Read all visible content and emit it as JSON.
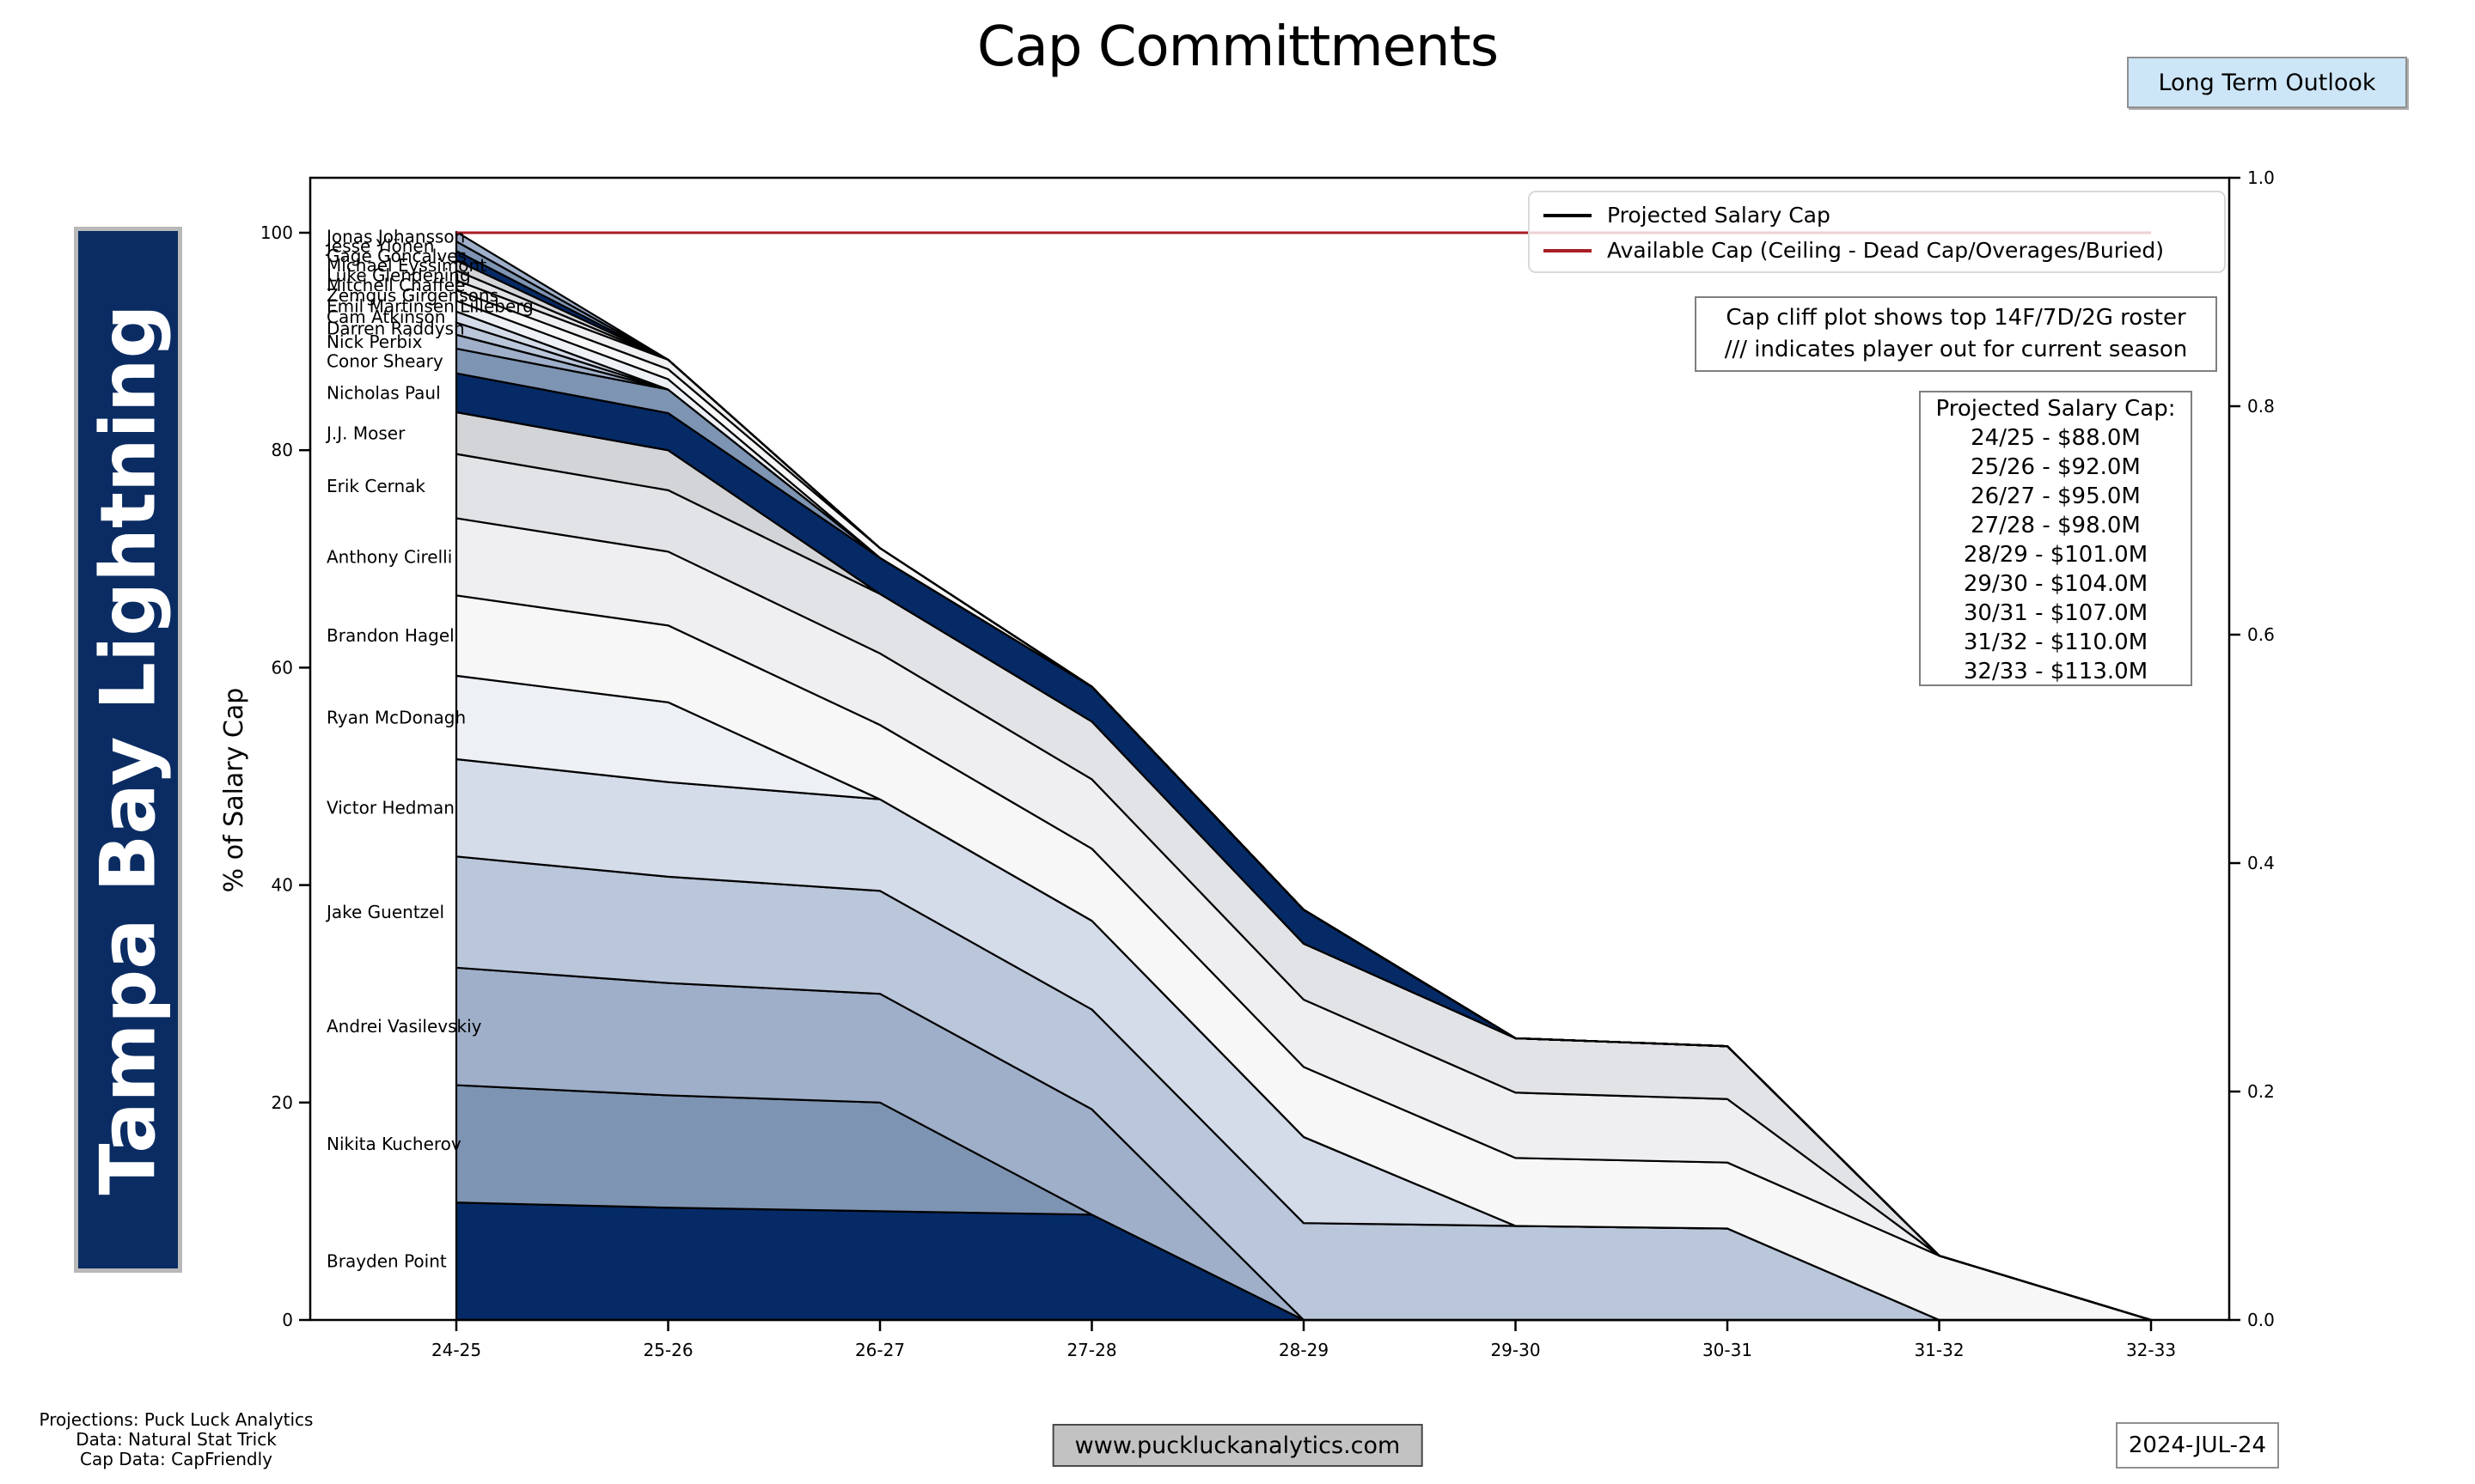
{
  "title": "Cap Committments",
  "toolbar": {
    "long_term_outlook_label": "Long Term Outlook"
  },
  "team_banner": "Tampa Bay Lightning",
  "legend": {
    "projected_label": "Projected Salary Cap",
    "available_label": "Available Cap (Ceiling - Dead Cap/Overages/Buried)"
  },
  "info_box": {
    "line1": "Cap cliff plot shows top 14F/7D/2G roster",
    "line2": "/// indicates player out for current season"
  },
  "cap_box": {
    "title": "Projected Salary Cap:",
    "lines": [
      "24/25 - $88.0M",
      "25/26 - $92.0M",
      "26/27 - $95.0M",
      "27/28 - $98.0M",
      "28/29 - $101.0M",
      "29/30 - $104.0M",
      "30/31 - $107.0M",
      "31/32 - $110.0M",
      "32/33 - $113.0M"
    ]
  },
  "footer": {
    "credits": [
      "Projections: Puck Luck Analytics",
      "Data: Natural Stat Trick",
      "Cap Data: CapFriendly"
    ],
    "website": "www.puckluckanalytics.com",
    "date": "2024-JUL-24"
  },
  "chart_data": {
    "type": "area",
    "stacked": true,
    "title": "Cap Committments",
    "x": [
      "24-25",
      "25-26",
      "26-27",
      "27-28",
      "28-29",
      "29-30",
      "30-31",
      "31-32",
      "32-33"
    ],
    "ylabel": "% of Salary Cap",
    "left_ticks": [
      0,
      20,
      40,
      60,
      80,
      100
    ],
    "right_ticks": [
      "0.0",
      "0.2",
      "0.4",
      "0.6",
      "0.8",
      "1.0"
    ],
    "ylim_left": [
      0,
      105
    ],
    "ylim_right": [
      0,
      1.0
    ],
    "grid": false,
    "legend_position": "upper right",
    "caps_millions": [
      88,
      92,
      95,
      98,
      101,
      104,
      107,
      110,
      113
    ],
    "projected_cap_line": {
      "y": 100,
      "color": "#000000"
    },
    "available_cap_line": {
      "y": 100,
      "color": "#a81e24"
    },
    "color_cycle": [
      "#052a66",
      "#7e94b3",
      "#9fafc9",
      "#bac6da",
      "#d5dce9",
      "#edf0f5",
      "#f7f7f8",
      "#efeff1",
      "#e2e3e6",
      "#d3d4d8"
    ],
    "units": "percent of salary cap",
    "series": [
      {
        "name": "Brayden Point",
        "values": [
          10.8,
          10.33,
          10.0,
          9.69,
          0,
          0,
          0,
          0,
          0
        ]
      },
      {
        "name": "Nikita Kucherov",
        "values": [
          10.8,
          10.33,
          10.0,
          0,
          0,
          0,
          0,
          0,
          0
        ]
      },
      {
        "name": "Andrei Vasilevskiy",
        "values": [
          10.8,
          10.33,
          10.0,
          9.69,
          0,
          0,
          0,
          0,
          0
        ]
      },
      {
        "name": "Jake Guentzel",
        "values": [
          10.23,
          9.78,
          9.47,
          9.18,
          8.91,
          8.65,
          8.41,
          0,
          0
        ]
      },
      {
        "name": "Victor Hedman",
        "values": [
          8.95,
          8.7,
          8.42,
          8.16,
          7.92,
          0,
          0,
          0,
          0
        ]
      },
      {
        "name": "Ryan McDonagh",
        "values": [
          7.67,
          7.34,
          0,
          0,
          0,
          0,
          0,
          0,
          0
        ]
      },
      {
        "name": "Brandon Hagel",
        "values": [
          7.39,
          7.07,
          6.84,
          6.63,
          6.44,
          6.25,
          6.07,
          5.91,
          0
        ]
      },
      {
        "name": "Anthony Cirelli",
        "values": [
          7.1,
          6.79,
          6.58,
          6.38,
          6.19,
          6.01,
          5.84,
          0,
          0
        ]
      },
      {
        "name": "Erik Cernak",
        "values": [
          5.91,
          5.65,
          5.47,
          5.31,
          5.15,
          5.0,
          4.86,
          0,
          0
        ]
      },
      {
        "name": "J.J. Moser",
        "values": [
          3.84,
          3.67,
          0,
          0,
          0,
          0,
          0,
          0,
          0
        ]
      },
      {
        "name": "Nicholas Paul",
        "values": [
          3.58,
          3.42,
          3.32,
          3.21,
          3.12,
          0,
          0,
          0,
          0
        ]
      },
      {
        "name": "Conor Sheary",
        "values": [
          2.27,
          2.17,
          0,
          0,
          0,
          0,
          0,
          0,
          0
        ]
      },
      {
        "name": "Nick Perbix",
        "values": [
          1.28,
          0,
          0,
          0,
          0,
          0,
          0,
          0,
          0
        ]
      },
      {
        "name": "Darren Raddysh",
        "values": [
          1.11,
          0,
          0,
          0,
          0,
          0,
          0,
          0,
          0
        ]
      },
      {
        "name": "Cam Atkinson",
        "values": [
          1.02,
          0,
          0,
          0,
          0,
          0,
          0,
          0,
          0
        ]
      },
      {
        "name": "Emil Martinsen Lilleberg",
        "values": [
          0.99,
          0.95,
          0,
          0,
          0,
          0,
          0,
          0,
          0
        ]
      },
      {
        "name": "Zemgus Girgensons",
        "values": [
          0.97,
          0.92,
          0.89,
          0,
          0,
          0,
          0,
          0,
          0
        ]
      },
      {
        "name": "Mitchell Chaffee",
        "values": [
          0.91,
          0.87,
          0,
          0,
          0,
          0,
          0,
          0,
          0
        ]
      },
      {
        "name": "Luke Glendening",
        "values": [
          0.91,
          0,
          0,
          0,
          0,
          0,
          0,
          0,
          0
        ]
      },
      {
        "name": "Michael Eyssimont",
        "values": [
          0.91,
          0,
          0,
          0,
          0,
          0,
          0,
          0,
          0
        ]
      },
      {
        "name": "Gage Goncalves",
        "values": [
          0.88,
          0,
          0,
          0,
          0,
          0,
          0,
          0,
          0
        ]
      },
      {
        "name": "Jesse Ylönen",
        "values": [
          0.88,
          0,
          0,
          0,
          0,
          0,
          0,
          0,
          0
        ]
      },
      {
        "name": "Jonas Johansson",
        "values": [
          0.88,
          0,
          0,
          0,
          0,
          0,
          0,
          0,
          0
        ]
      }
    ]
  }
}
